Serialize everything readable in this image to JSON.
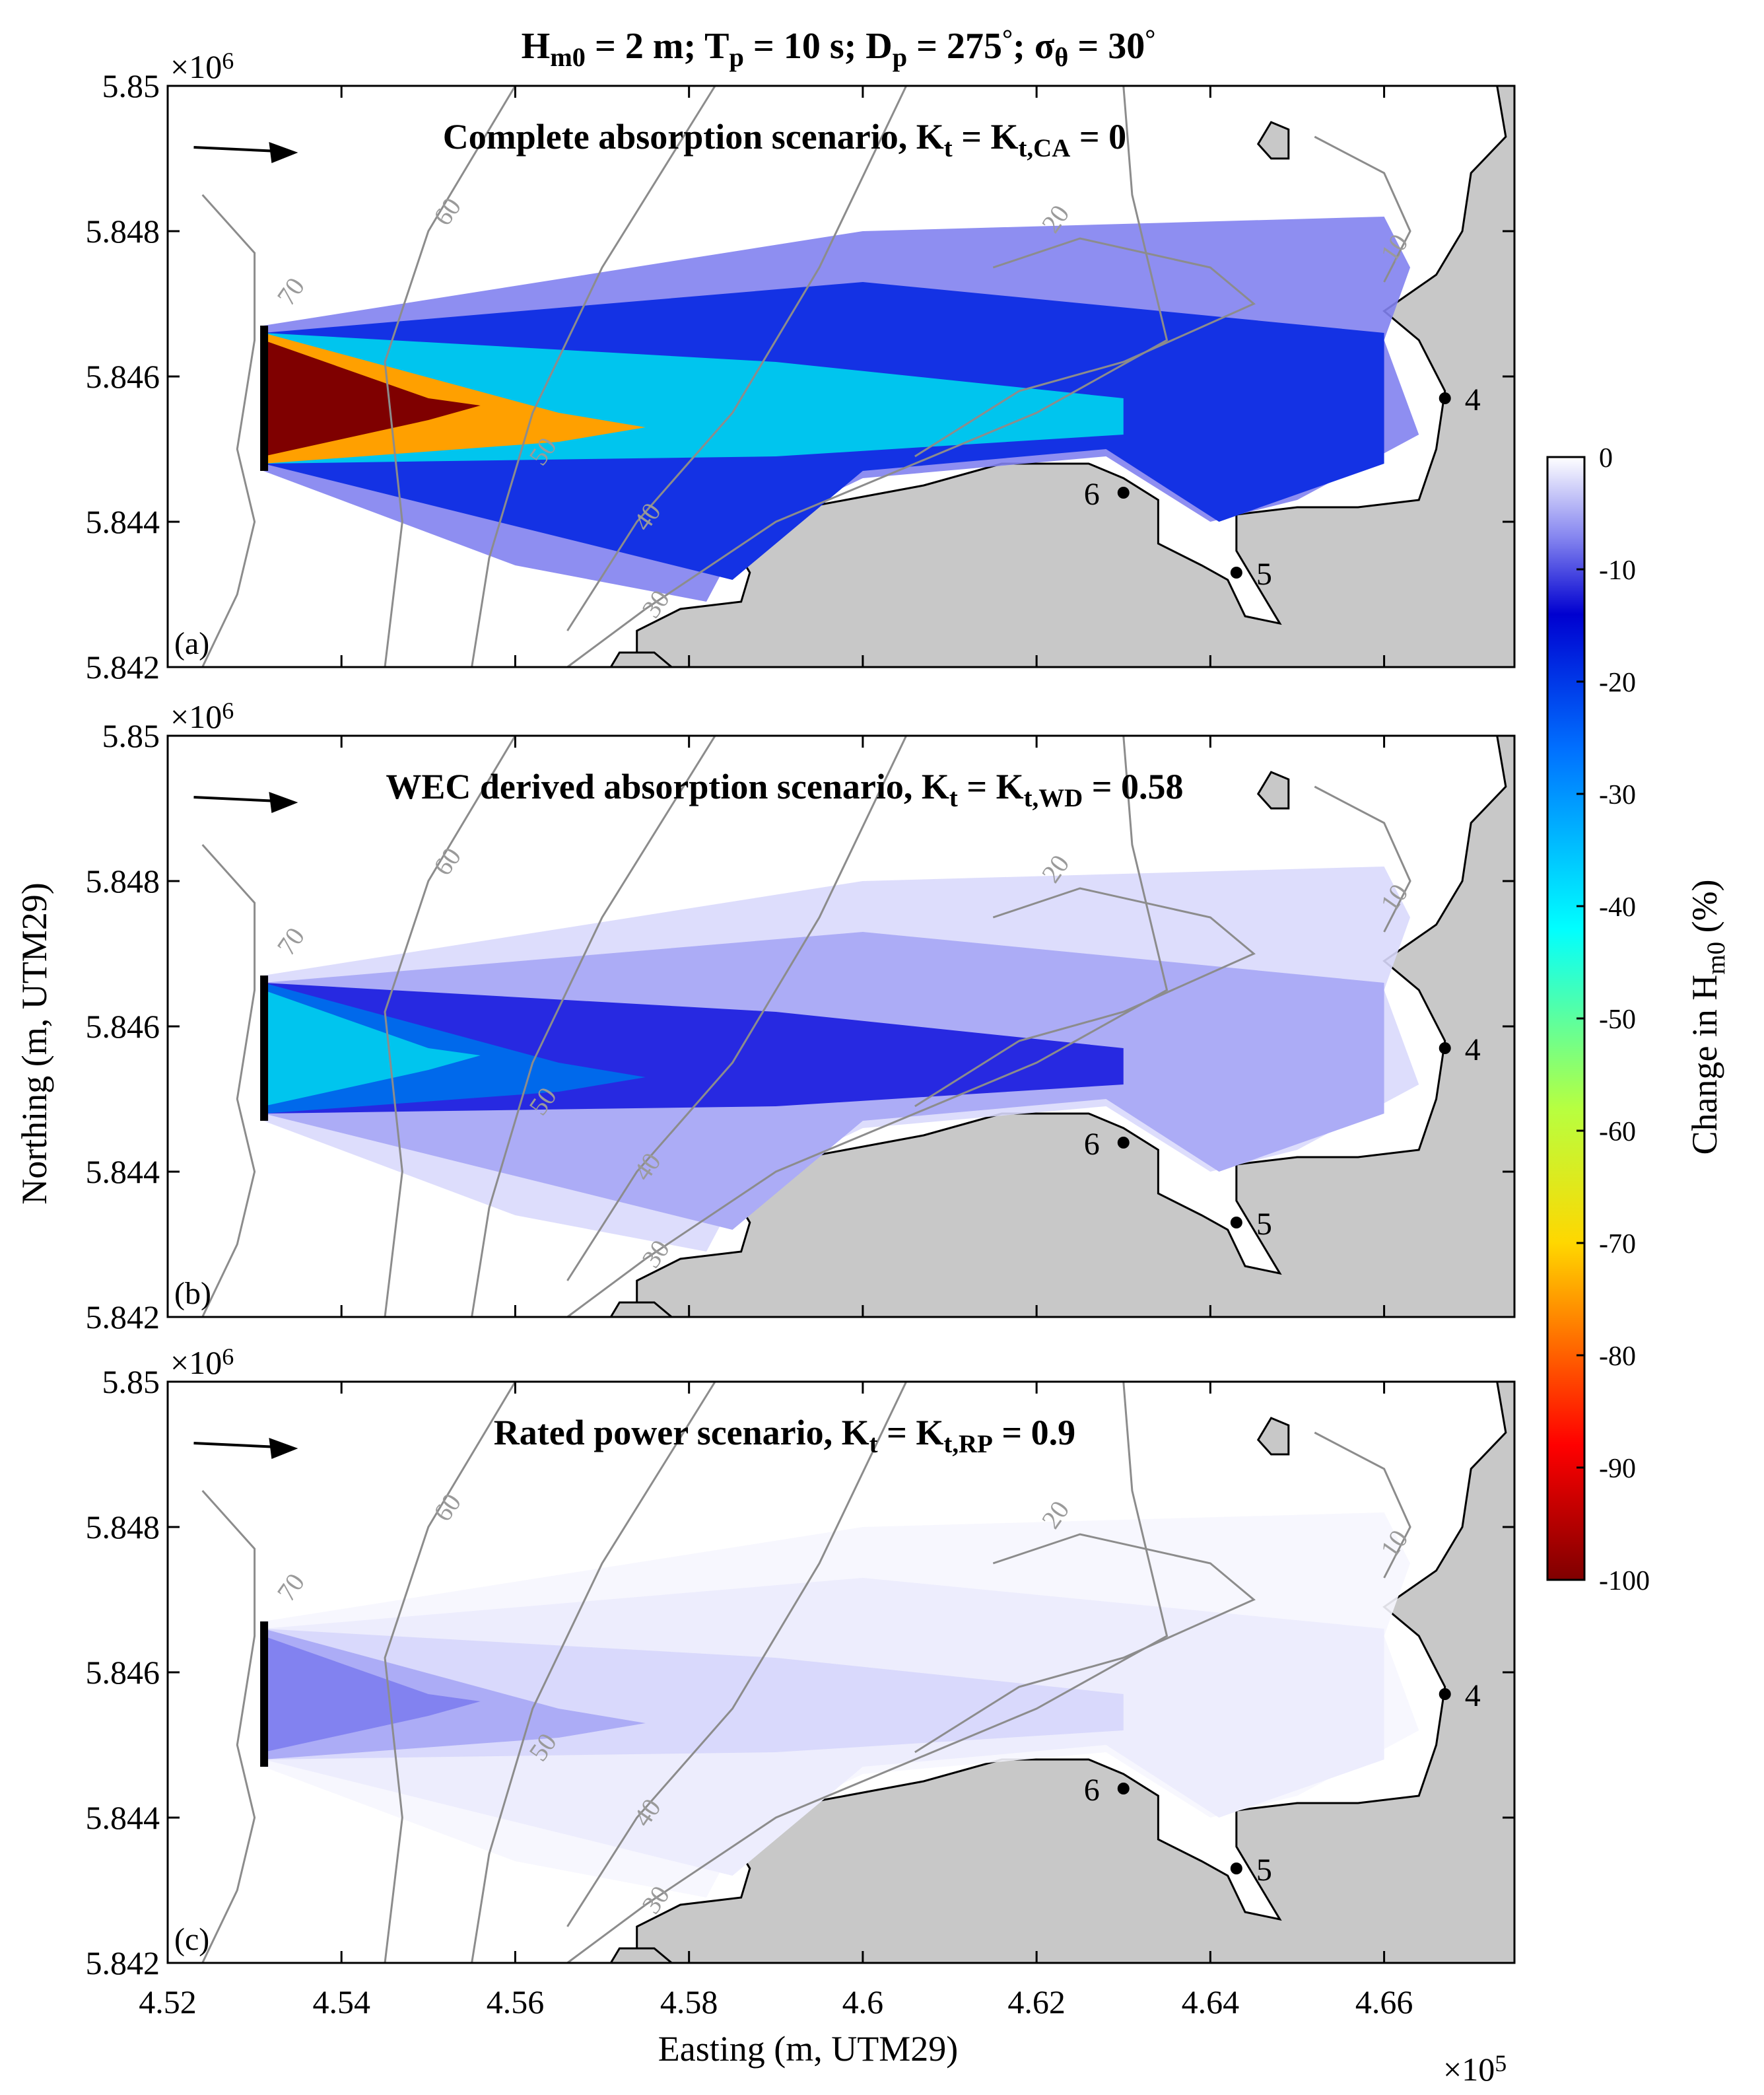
{
  "figure_title": {
    "hm0": "H",
    "hm0_sub": "m0",
    "hm0_val": " = 2 m; T",
    "tp_sub": "p",
    "tp_val": " = 10 s; D",
    "dp_sub": "p",
    "dp_val": " = 275",
    "dp_unit": "°",
    "sigma_pre": "; σ",
    "sigma_sub": "θ",
    "sigma_val": " = 30",
    "sigma_unit": "°"
  },
  "panels": [
    {
      "letter": "(a)",
      "scenario_main": "Complete absorption scenario, K",
      "sub1": "t",
      "mid": " = K",
      "sub2": "t,CA",
      "tail": " = 0",
      "kt": 0,
      "kt_fraction_change": -100
    },
    {
      "letter": "(b)",
      "scenario_main": "WEC derived absorption scenario, K",
      "sub1": "t",
      "mid": " = K",
      "sub2": "t,WD",
      "tail": " = 0.58",
      "kt": 0.58,
      "kt_fraction_change": -35
    },
    {
      "letter": "(c)",
      "scenario_main": "Rated power scenario, K",
      "sub1": "t",
      "mid": " = K",
      "sub2": "t,RP",
      "tail": " = 0.9",
      "kt": 0.9,
      "kt_fraction_change": -8
    }
  ],
  "points": [
    {
      "label": "4",
      "x": 4.667,
      "y": 5.8457
    },
    {
      "label": "5",
      "x": 4.643,
      "y": 5.8433
    },
    {
      "label": "6",
      "x": 4.63,
      "y": 5.8444
    }
  ],
  "axes": {
    "xlabel": "Easting (m, UTM29)",
    "ylabel": "Northing (m, UTM29)",
    "x_multiplier": "×10",
    "x_multiplier_exp": "5",
    "y_multiplier": "×10",
    "y_multiplier_exp": "6",
    "xticks": [
      "4.52",
      "4.54",
      "4.56",
      "4.58",
      "4.6",
      "4.62",
      "4.64",
      "4.66"
    ],
    "yticks": [
      "5.842",
      "5.844",
      "5.846",
      "5.848",
      "5.85"
    ]
  },
  "colorbar": {
    "label": "Change in H",
    "label_sub": "m0",
    "label_unit": " (%)",
    "ticks": [
      "0",
      "-10",
      "-20",
      "-30",
      "-40",
      "-50",
      "-60",
      "-70",
      "-80",
      "-90",
      "-100"
    ],
    "colormap": "jet"
  },
  "contour_labels": [
    "70",
    "60",
    "50",
    "40",
    "30",
    "20",
    "10"
  ],
  "chart_data": {
    "type": "heatmap",
    "title": "H m0 = 2 m; T p = 10 s; D p = 275°; σ θ = 30°",
    "xlabel": "Easting (m, UTM29)",
    "ylabel": "Northing (m, UTM29)",
    "xlim": [
      452000,
      467500
    ],
    "ylim": [
      5842000,
      5850000
    ],
    "colorbar_range": [
      -100,
      0
    ],
    "colorbar_label": "Change in H m0 (%)",
    "series": [
      {
        "name": "Complete absorption scenario, Kt = Kt,CA = 0",
        "max_change": -100
      },
      {
        "name": "WEC derived absorption scenario, Kt = Kt,WD = 0.58",
        "max_change": -35
      },
      {
        "name": "Rated power scenario, Kt = Kt,RP = 0.9",
        "max_change": -8
      }
    ],
    "points": [
      {
        "label": "4",
        "x": 466700,
        "y": 5845700
      },
      {
        "label": "5",
        "x": 464300,
        "y": 5843300
      },
      {
        "label": "6",
        "x": 463000,
        "y": 5844400
      }
    ]
  }
}
